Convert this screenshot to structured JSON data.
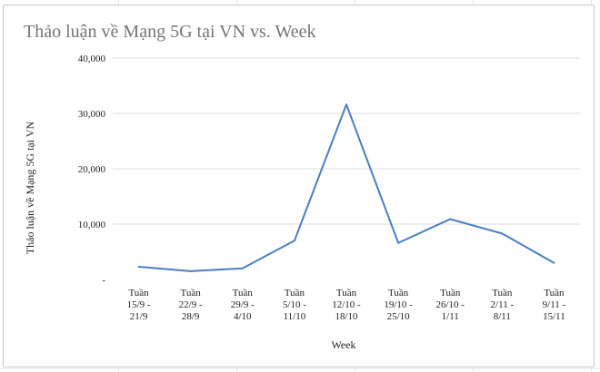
{
  "chart_data": {
    "type": "line",
    "title": "Thảo luận về Mạng 5G tại VN vs. Week",
    "xlabel": "Week",
    "ylabel": "Thảo luận về Mạng 5G tại VN",
    "categories": [
      [
        "Tuần",
        "15/9 -",
        "21/9"
      ],
      [
        "Tuần",
        "22/9 -",
        "28/9"
      ],
      [
        "Tuần",
        "29/9 -",
        "4/10"
      ],
      [
        "Tuần",
        "5/10 -",
        "11/10"
      ],
      [
        "Tuần",
        "12/10 -",
        "18/10"
      ],
      [
        "Tuần",
        "19/10 -",
        "25/10"
      ],
      [
        "Tuần",
        "26/10 -",
        "1/11"
      ],
      [
        "Tuần",
        "2/11 -",
        "8/11"
      ],
      [
        "Tuần",
        "9/11 -",
        "15/11"
      ]
    ],
    "values": [
      2300,
      1500,
      2000,
      7000,
      31600,
      6600,
      10900,
      8300,
      3000
    ],
    "ylim": [
      0,
      40000
    ],
    "yticks": [
      "-",
      "10,000",
      "20,000",
      "30,000",
      "40,000"
    ],
    "ytick_values": [
      0,
      10000,
      20000,
      30000,
      40000
    ],
    "grid": true,
    "line_color": "#4a7ec2",
    "grid_color": "#dcdcdc"
  }
}
